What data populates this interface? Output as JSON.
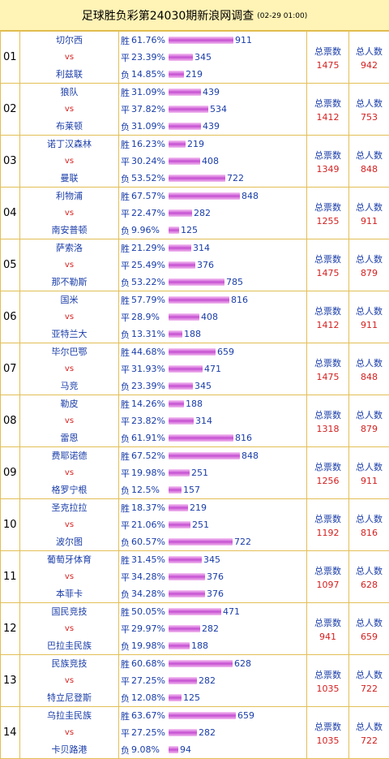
{
  "header": {
    "title": "足球胜负彩第24030期新浪网调查",
    "date": "(02-29 01:00)"
  },
  "labels": {
    "vs": "vs",
    "win": "胜",
    "draw": "平",
    "lose": "负",
    "total_votes": "总票数",
    "total_people": "总人数"
  },
  "matches": [
    {
      "no": "01",
      "home": "切尔西",
      "away": "利兹联",
      "win_pct": "61.76%",
      "win_cnt": "911",
      "draw_pct": "23.39%",
      "draw_cnt": "345",
      "lose_pct": "14.85%",
      "lose_cnt": "219",
      "total_votes": "1475",
      "total_people": "942"
    },
    {
      "no": "02",
      "home": "狼队",
      "away": "布莱顿",
      "win_pct": "31.09%",
      "win_cnt": "439",
      "draw_pct": "37.82%",
      "draw_cnt": "534",
      "lose_pct": "31.09%",
      "lose_cnt": "439",
      "total_votes": "1412",
      "total_people": "753"
    },
    {
      "no": "03",
      "home": "诺丁汉森林",
      "away": "曼联",
      "win_pct": "16.23%",
      "win_cnt": "219",
      "draw_pct": "30.24%",
      "draw_cnt": "408",
      "lose_pct": "53.52%",
      "lose_cnt": "722",
      "total_votes": "1349",
      "total_people": "848"
    },
    {
      "no": "04",
      "home": "利物浦",
      "away": "南安普顿",
      "win_pct": "67.57%",
      "win_cnt": "848",
      "draw_pct": "22.47%",
      "draw_cnt": "282",
      "lose_pct": " 9.96%",
      "lose_cnt": "125",
      "total_votes": "1255",
      "total_people": "911"
    },
    {
      "no": "05",
      "home": "萨索洛",
      "away": "那不勒斯",
      "win_pct": "21.29%",
      "win_cnt": "314",
      "draw_pct": "25.49%",
      "draw_cnt": "376",
      "lose_pct": "53.22%",
      "lose_cnt": "785",
      "total_votes": "1475",
      "total_people": "879"
    },
    {
      "no": "06",
      "home": "国米",
      "away": "亚特兰大",
      "win_pct": "57.79%",
      "win_cnt": "816",
      "draw_pct": " 28.9%",
      "draw_cnt": "408",
      "lose_pct": "13.31%",
      "lose_cnt": "188",
      "total_votes": "1412",
      "total_people": "911"
    },
    {
      "no": "07",
      "home": "毕尔巴鄂",
      "away": "马竞",
      "win_pct": "44.68%",
      "win_cnt": "659",
      "draw_pct": "31.93%",
      "draw_cnt": "471",
      "lose_pct": "23.39%",
      "lose_cnt": "345",
      "total_votes": "1475",
      "total_people": "848"
    },
    {
      "no": "08",
      "home": "勒皮",
      "away": "雷恩",
      "win_pct": "14.26%",
      "win_cnt": "188",
      "draw_pct": "23.82%",
      "draw_cnt": "314",
      "lose_pct": "61.91%",
      "lose_cnt": "816",
      "total_votes": "1318",
      "total_people": "879"
    },
    {
      "no": "09",
      "home": "费耶诺德",
      "away": "格罗宁根",
      "win_pct": "67.52%",
      "win_cnt": "848",
      "draw_pct": "19.98%",
      "draw_cnt": "251",
      "lose_pct": " 12.5%",
      "lose_cnt": "157",
      "total_votes": "1256",
      "total_people": "911"
    },
    {
      "no": "10",
      "home": "圣克拉拉",
      "away": "波尔图",
      "win_pct": "18.37%",
      "win_cnt": "219",
      "draw_pct": "21.06%",
      "draw_cnt": "251",
      "lose_pct": "60.57%",
      "lose_cnt": "722",
      "total_votes": "1192",
      "total_people": "816"
    },
    {
      "no": "11",
      "home": "葡萄牙体育",
      "away": "本菲卡",
      "win_pct": "31.45%",
      "win_cnt": "345",
      "draw_pct": "34.28%",
      "draw_cnt": "376",
      "lose_pct": "34.28%",
      "lose_cnt": "376",
      "total_votes": "1097",
      "total_people": "628"
    },
    {
      "no": "12",
      "home": "国民竞技",
      "away": "巴拉圭民族",
      "win_pct": "50.05%",
      "win_cnt": "471",
      "draw_pct": "29.97%",
      "draw_cnt": "282",
      "lose_pct": "19.98%",
      "lose_cnt": "188",
      "total_votes": "941",
      "total_people": "659"
    },
    {
      "no": "13",
      "home": "民族竞技",
      "away": "特立尼登斯",
      "win_pct": "60.68%",
      "win_cnt": "628",
      "draw_pct": "27.25%",
      "draw_cnt": "282",
      "lose_pct": "12.08%",
      "lose_cnt": "125",
      "total_votes": "1035",
      "total_people": "722"
    },
    {
      "no": "14",
      "home": "乌拉圭民族",
      "away": "卡贝路港",
      "win_pct": "63.67%",
      "win_cnt": "659",
      "draw_pct": "27.25%",
      "draw_cnt": "282",
      "lose_pct": " 9.08%",
      "lose_cnt": "94",
      "total_votes": "1035",
      "total_people": "722"
    }
  ]
}
